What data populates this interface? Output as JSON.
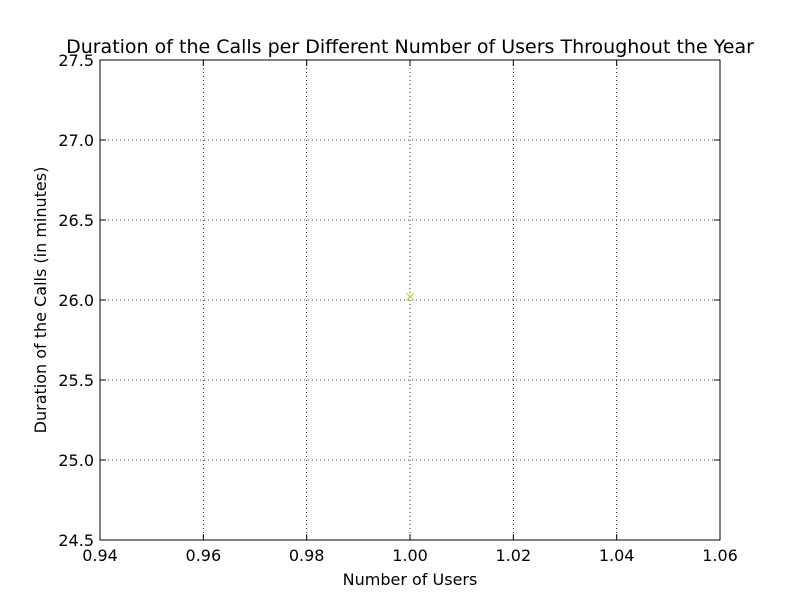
{
  "chart_data": {
    "type": "scatter",
    "title": "Duration of the Calls per Different Number of Users Throughout the Year",
    "xlabel": "Number of Users",
    "ylabel": "Duration of the Calls (in minutes)",
    "xlim": [
      0.94,
      1.06
    ],
    "ylim": [
      24.5,
      27.5
    ],
    "xticks": [
      "0.94",
      "0.96",
      "0.98",
      "1.00",
      "1.02",
      "1.04",
      "1.06"
    ],
    "yticks": [
      "24.5",
      "25.0",
      "25.5",
      "26.0",
      "26.5",
      "27.0",
      "27.5"
    ],
    "grid": true,
    "legend": "none",
    "series": [
      {
        "marker": "x",
        "color": "#bfbf00",
        "points": [
          {
            "x": 1.0,
            "y": 26.02
          }
        ]
      }
    ]
  }
}
